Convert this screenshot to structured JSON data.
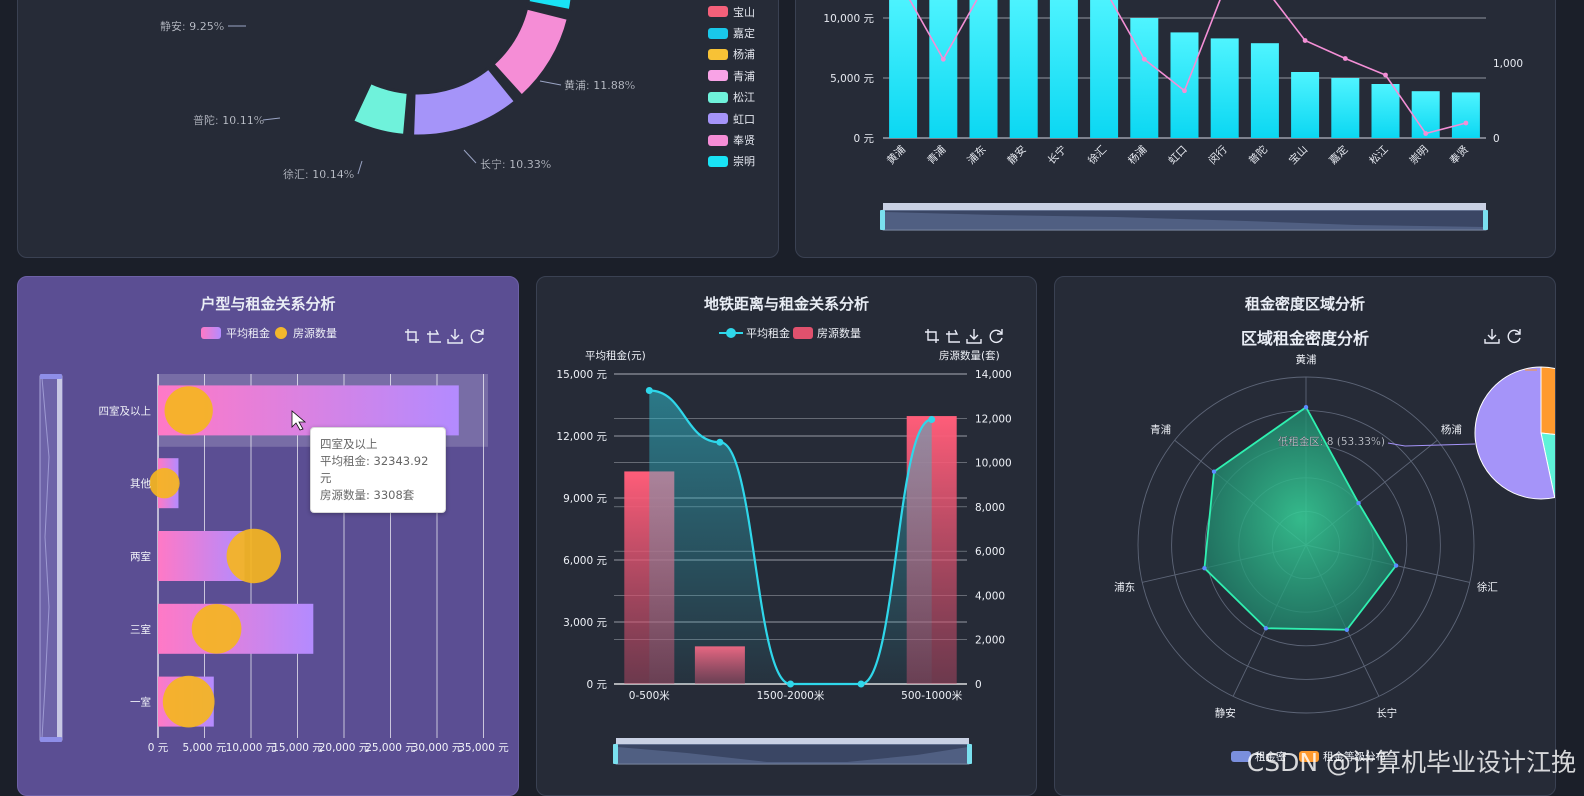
{
  "palette": {
    "bg": "#1b1f29",
    "panel": "#262b37",
    "panel_purple": "#5b4e93",
    "cyan": "#19e3f5",
    "pink": "#f48fd6",
    "orange": "#ff9a2e",
    "green": "#4af0c9",
    "purple": "#a594f9",
    "yellow": "#f7c236",
    "red": "#f4607a"
  },
  "district_donut": {
    "legend": [
      {
        "label": "宝山",
        "color": "#f4607a"
      },
      {
        "label": "嘉定",
        "color": "#19c8ea"
      },
      {
        "label": "杨浦",
        "color": "#f7c236"
      },
      {
        "label": "青浦",
        "color": "#f8a3e6"
      },
      {
        "label": "松江",
        "color": "#6ff2db"
      },
      {
        "label": "虹口",
        "color": "#a594f9"
      },
      {
        "label": "奉贤",
        "color": "#f58dd6"
      },
      {
        "label": "崇明",
        "color": "#19e3f5"
      }
    ],
    "slice_labels": [
      "静安: 9.25%",
      "黄浦: 11.88%",
      "普陀: 10.11%",
      "徐汇: 10.14%",
      "长宁: 10.33%"
    ]
  },
  "district_rent_bar": {
    "categories": [
      "黄浦",
      "青浦",
      "浦东",
      "静安",
      "长宁",
      "徐汇",
      "杨浦",
      "虹口",
      "闵行",
      "普陀",
      "宝山",
      "嘉定",
      "松江",
      "崇明",
      "奉贤"
    ],
    "left_ticks": [
      "0 元",
      "5,000 元",
      "10,000 元"
    ],
    "right_ticks": [
      "0",
      "1,000"
    ]
  },
  "panel_titles": {
    "room_type": "户型与租金关系分析",
    "metro": "地铁距离与租金关系分析",
    "density_outer": "租金密度区域分析",
    "density_inner": "区域租金密度分析"
  },
  "room_type_chart": {
    "legend": [
      "平均租金",
      "房源数量"
    ],
    "categories": [
      "一室",
      "三室",
      "两室",
      "其他",
      "四室及以上"
    ],
    "x_ticks": [
      "0 元",
      "5,000 元",
      "10,000 元",
      "15,000 元",
      "20,000 元",
      "25,000 元",
      "30,000 元",
      "35,000 元"
    ],
    "tooltip": {
      "title": "四室及以上",
      "line1": "平均租金: 32343.92元",
      "line2": "房源数量: 3308套"
    }
  },
  "metro_chart": {
    "legend": [
      "平均租金",
      "房源数量"
    ],
    "left_axis_name": "平均租金(元)",
    "right_axis_name": "房源数量(套)",
    "left_ticks": [
      "0 元",
      "3,000 元",
      "6,000 元",
      "9,000 元",
      "12,000 元",
      "15,000 元"
    ],
    "right_ticks": [
      "0",
      "2,000",
      "4,000",
      "6,000",
      "8,000",
      "10,000",
      "12,000",
      "14,000"
    ],
    "x_labels": [
      "0-500米",
      "1500-2000米",
      "500-1000米"
    ]
  },
  "density_chart": {
    "radar_labels": [
      "黄浦",
      "杨浦",
      "徐汇",
      "长宁",
      "静安",
      "浦东",
      "青浦"
    ],
    "pie_label": "低租金区: 8 (53.33%)",
    "legend": [
      "租金密",
      "租金等级分布"
    ]
  },
  "watermark": "CSDN @计算机毕业设计江挽",
  "chart_data": [
    {
      "type": "bar",
      "title": "户型与租金关系分析",
      "orientation": "horizontal",
      "categories": [
        "一室",
        "三室",
        "两室",
        "其他",
        "四室及以上"
      ],
      "series": [
        {
          "name": "平均租金",
          "values": [
            6000,
            16700,
            9300,
            2200,
            32343.92
          ]
        },
        {
          "name": "房源数量",
          "values": [
            3800,
            3500,
            4200,
            1300,
            3308
          ]
        }
      ],
      "xlim": [
        0,
        35000
      ]
    },
    {
      "type": "bar",
      "title": "地铁距离与租金关系分析",
      "categories": [
        "0-500米",
        "",
        "1500-2000米",
        "",
        "500-1000米"
      ],
      "series": [
        {
          "name": "平均租金",
          "values": [
            14200,
            11700,
            0,
            0,
            12800
          ]
        },
        {
          "name": "房源数量",
          "values": [
            9600,
            1700,
            0,
            0,
            12100
          ]
        }
      ],
      "ylim_left": [
        0,
        15000
      ],
      "ylim_right": [
        0,
        14000
      ]
    },
    {
      "type": "bar",
      "categories": [
        "黄浦",
        "青浦",
        "浦东",
        "静安",
        "长宁",
        "徐汇",
        "杨浦",
        "虹口",
        "闵行",
        "普陀",
        "宝山",
        "嘉定",
        "松江",
        "崇明",
        "奉贤"
      ],
      "series": [
        {
          "values": [
            12000,
            12000,
            12000,
            12000,
            12000,
            12000,
            10000,
            8800,
            8300,
            7900,
            5500,
            5000,
            4500,
            3900,
            3800
          ]
        },
        {
          "values": [
            2000,
            1050,
            2000,
            2000,
            2000,
            2000,
            1050,
            630,
            2000,
            2000,
            1300,
            1060,
            840,
            60,
            200
          ]
        }
      ],
      "ylim_left": [
        0,
        12000
      ],
      "ylim_right": [
        0,
        1600
      ]
    },
    {
      "type": "pie",
      "title": "区域租金密度分析",
      "slices": [
        {
          "label": "低租金区",
          "value": 8,
          "percent": 53.33
        },
        {
          "label": "",
          "value": 4
        },
        {
          "label": "",
          "value": 3
        }
      ]
    }
  ]
}
